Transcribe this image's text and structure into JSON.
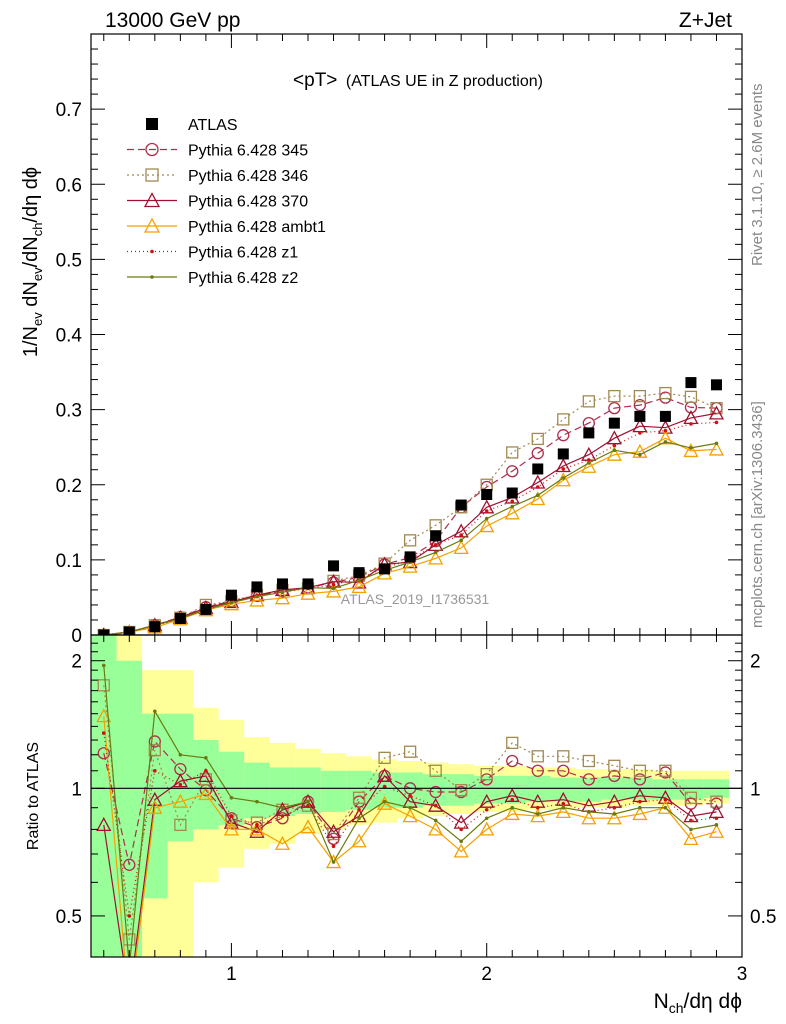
{
  "header": {
    "left": "13000 GeV pp",
    "right": "Z+Jet"
  },
  "side": {
    "rivet": "Rivet 3.1.10, ≥ 2.6M events",
    "mcplots": "mcplots.cern.ch [arXiv:1306.3436]"
  },
  "chart_data": {
    "type": "scatter",
    "title": "<pT> (ATLAS UE in Z production)",
    "title_main": "<pT>",
    "title_sub": "(ATLAS UE in Z production)",
    "analysis_label": "ATLAS_2019_I1736531",
    "xlabel": {
      "base": "N",
      "sub": "ch",
      "rest": "/dη dϕ"
    },
    "ylabel": {
      "p1": "1/N",
      "s1": "ev",
      "p2": " dN",
      "s2": "ev",
      "p3": "/dN",
      "s3": "ch",
      "p4": "/dη dϕ"
    },
    "ratio_ylabel": "Ratio to ATLAS",
    "xlim": [
      0.45,
      3.0
    ],
    "ylim": [
      0,
      0.8
    ],
    "ratio_ylim": [
      0.4,
      2.3
    ],
    "xticks": [
      1,
      2,
      3
    ],
    "xtick_labels": [
      "1",
      "2",
      "3"
    ],
    "yticks": [
      0,
      0.1,
      0.2,
      0.3,
      0.4,
      0.5,
      0.6,
      0.7
    ],
    "ytick_labels": [
      "0",
      "0.1",
      "0.2",
      "0.3",
      "0.4",
      "0.5",
      "0.6",
      "0.7"
    ],
    "ratio_yticks": [
      0.5,
      1,
      2
    ],
    "ratio_ytick_labels": [
      "0.5",
      "1",
      "2"
    ],
    "x": [
      0.5,
      0.6,
      0.7,
      0.8,
      0.9,
      1.0,
      1.1,
      1.2,
      1.3,
      1.4,
      1.5,
      1.6,
      1.7,
      1.8,
      1.9,
      2.0,
      2.1,
      2.2,
      2.3,
      2.4,
      2.5,
      2.6,
      2.7,
      2.8,
      2.9
    ],
    "data": {
      "name": "ATLAS",
      "values": [
        0.0,
        0.004,
        0.011,
        0.022,
        0.034,
        0.053,
        0.064,
        0.068,
        0.068,
        0.092,
        0.083,
        0.088,
        0.104,
        0.132,
        0.173,
        0.187,
        0.189,
        0.221,
        0.241,
        0.269,
        0.282,
        0.291,
        0.291,
        0.336,
        0.333
      ]
    },
    "bands": {
      "inner_color": "#99ff99",
      "outer_color": "#ffff99",
      "inner": [
        [
          0.3,
          2.35
        ],
        [
          0.3,
          2.0
        ],
        [
          0.55,
          1.5
        ],
        [
          0.75,
          1.5
        ],
        [
          0.8,
          1.3
        ],
        [
          0.82,
          1.22
        ],
        [
          0.85,
          1.15
        ],
        [
          0.86,
          1.12
        ],
        [
          0.87,
          1.12
        ],
        [
          0.88,
          1.1
        ],
        [
          0.89,
          1.1
        ],
        [
          0.9,
          1.09
        ],
        [
          0.9,
          1.09
        ],
        [
          0.91,
          1.08
        ],
        [
          0.91,
          1.08
        ],
        [
          0.92,
          1.07
        ],
        [
          0.92,
          1.07
        ],
        [
          0.93,
          1.07
        ],
        [
          0.93,
          1.06
        ],
        [
          0.93,
          1.06
        ],
        [
          0.94,
          1.06
        ],
        [
          0.94,
          1.06
        ],
        [
          0.94,
          1.05
        ],
        [
          0.94,
          1.05
        ],
        [
          0.95,
          1.05
        ]
      ],
      "outer": [
        [
          0.3,
          2.35
        ],
        [
          0.3,
          2.35
        ],
        [
          0.3,
          1.9
        ],
        [
          0.4,
          1.9
        ],
        [
          0.6,
          1.55
        ],
        [
          0.65,
          1.45
        ],
        [
          0.72,
          1.32
        ],
        [
          0.74,
          1.28
        ],
        [
          0.78,
          1.24
        ],
        [
          0.8,
          1.21
        ],
        [
          0.82,
          1.19
        ],
        [
          0.83,
          1.17
        ],
        [
          0.85,
          1.16
        ],
        [
          0.86,
          1.15
        ],
        [
          0.87,
          1.14
        ],
        [
          0.88,
          1.13
        ],
        [
          0.88,
          1.13
        ],
        [
          0.89,
          1.12
        ],
        [
          0.89,
          1.12
        ],
        [
          0.9,
          1.11
        ],
        [
          0.9,
          1.11
        ],
        [
          0.91,
          1.11
        ],
        [
          0.91,
          1.1
        ],
        [
          0.91,
          1.1
        ],
        [
          0.92,
          1.1
        ]
      ]
    },
    "series": [
      {
        "name": "Pythia 6.428 345",
        "color": "#b02c4a",
        "marker": "circle",
        "dash": "7,4",
        "values": [
          0.0,
          0.003,
          0.013,
          0.024,
          0.037,
          0.045,
          0.052,
          0.058,
          0.063,
          0.07,
          0.077,
          0.094,
          0.103,
          0.125,
          0.17,
          0.197,
          0.218,
          0.242,
          0.266,
          0.282,
          0.302,
          0.306,
          0.316,
          0.303,
          0.302
        ],
        "ratio": [
          1.21,
          0.66,
          1.29,
          1.11,
          0.99,
          0.85,
          0.81,
          0.85,
          0.93,
          0.76,
          0.93,
          1.07,
          1.0,
          0.98,
          0.98,
          1.05,
          1.16,
          1.1,
          1.1,
          1.05,
          1.07,
          1.05,
          1.09,
          0.92,
          0.92
        ]
      },
      {
        "name": "Pythia 6.428 346",
        "color": "#a08a50",
        "marker": "square",
        "dash": "2,3",
        "values": [
          0.0,
          0.004,
          0.013,
          0.023,
          0.04,
          0.045,
          0.053,
          0.06,
          0.062,
          0.072,
          0.079,
          0.095,
          0.126,
          0.146,
          0.17,
          0.2,
          0.243,
          0.261,
          0.287,
          0.311,
          0.318,
          0.318,
          0.322,
          0.317,
          0.302
        ],
        "ratio": [
          1.75,
          0.44,
          1.23,
          0.82,
          1.05,
          0.84,
          0.83,
          0.89,
          0.91,
          0.78,
          0.95,
          1.18,
          1.22,
          1.1,
          0.99,
          1.08,
          1.28,
          1.19,
          1.19,
          1.16,
          1.13,
          1.1,
          1.1,
          0.95,
          0.93
        ]
      },
      {
        "name": "Pythia 6.428 370",
        "color": "#a01030",
        "marker": "triangle",
        "dash": "",
        "values": [
          0.0,
          0.004,
          0.013,
          0.023,
          0.036,
          0.044,
          0.053,
          0.06,
          0.063,
          0.071,
          0.07,
          0.094,
          0.097,
          0.12,
          0.138,
          0.17,
          0.183,
          0.203,
          0.225,
          0.24,
          0.262,
          0.278,
          0.276,
          0.289,
          0.295
        ],
        "ratio": [
          0.82,
          0.32,
          0.94,
          1.04,
          1.07,
          0.83,
          0.79,
          0.89,
          0.93,
          0.79,
          0.86,
          1.07,
          0.93,
          0.91,
          0.83,
          0.93,
          0.96,
          0.93,
          0.94,
          0.91,
          0.93,
          0.96,
          0.95,
          0.86,
          0.88
        ]
      },
      {
        "name": "Pythia 6.428 ambt1",
        "color": "#f5a000",
        "marker": "triangle",
        "dash": "",
        "values": [
          0.0,
          0.004,
          0.01,
          0.021,
          0.033,
          0.041,
          0.046,
          0.049,
          0.055,
          0.058,
          0.064,
          0.082,
          0.091,
          0.102,
          0.116,
          0.145,
          0.162,
          0.181,
          0.206,
          0.224,
          0.24,
          0.244,
          0.262,
          0.245,
          0.247
        ],
        "ratio": [
          1.48,
          0.3,
          0.9,
          0.93,
          0.97,
          0.8,
          0.8,
          0.74,
          0.81,
          0.67,
          0.75,
          0.92,
          0.86,
          0.8,
          0.71,
          0.8,
          0.87,
          0.86,
          0.88,
          0.85,
          0.85,
          0.87,
          0.9,
          0.76,
          0.79
        ]
      },
      {
        "name": "Pythia 6.428 z1",
        "color": "#d01010",
        "marker": "dot",
        "dash": "1,3",
        "values": [
          0.0,
          0.004,
          0.012,
          0.022,
          0.036,
          0.046,
          0.053,
          0.057,
          0.062,
          0.067,
          0.075,
          0.089,
          0.1,
          0.12,
          0.133,
          0.165,
          0.178,
          0.197,
          0.221,
          0.233,
          0.252,
          0.269,
          0.272,
          0.281,
          0.283
        ],
        "ratio": [
          1.35,
          0.5,
          1.1,
          1.02,
          1.1,
          0.86,
          0.82,
          0.86,
          0.91,
          0.73,
          0.89,
          1.01,
          0.96,
          0.91,
          0.8,
          0.89,
          0.94,
          0.9,
          0.92,
          0.88,
          0.9,
          0.93,
          0.94,
          0.84,
          0.85
        ]
      },
      {
        "name": "Pythia 6.428 z2",
        "color": "#6a7a10",
        "marker": "dot",
        "dash": "",
        "values": [
          0.0,
          0.004,
          0.013,
          0.022,
          0.034,
          0.043,
          0.051,
          0.057,
          0.063,
          0.062,
          0.073,
          0.086,
          0.097,
          0.11,
          0.126,
          0.155,
          0.171,
          0.186,
          0.209,
          0.229,
          0.246,
          0.24,
          0.257,
          0.249,
          0.255
        ],
        "ratio": [
          1.95,
          0.38,
          1.52,
          1.2,
          1.18,
          0.95,
          0.93,
          0.9,
          0.93,
          0.67,
          0.85,
          0.93,
          0.9,
          0.84,
          0.75,
          0.85,
          0.9,
          0.87,
          0.9,
          0.88,
          0.87,
          0.9,
          0.9,
          0.8,
          0.82
        ]
      }
    ]
  }
}
